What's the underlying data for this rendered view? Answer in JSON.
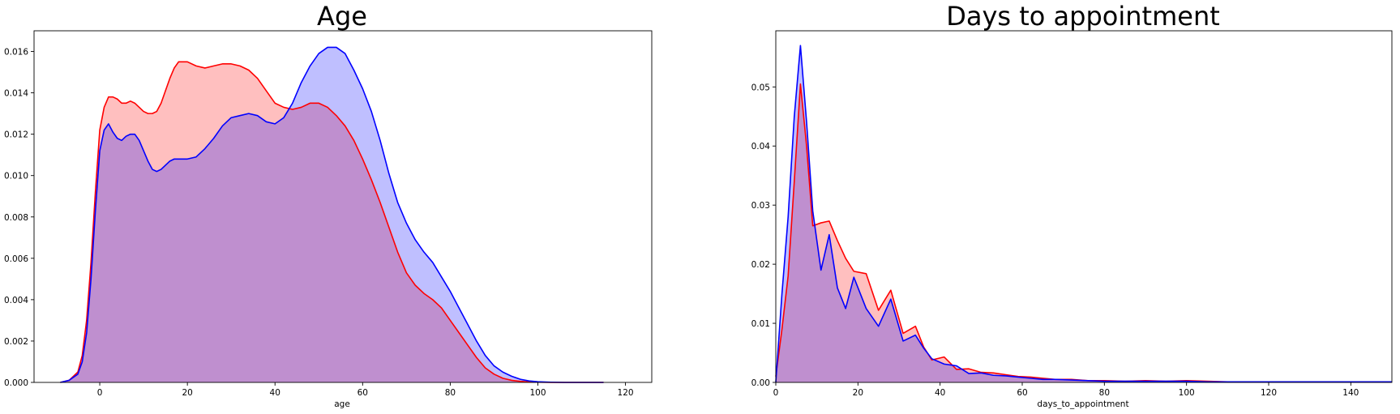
{
  "chart_data": [
    {
      "type": "area",
      "title": "Age",
      "xlabel": "age",
      "ylabel": "",
      "xlim": [
        -15,
        126
      ],
      "ylim": [
        0,
        0.017
      ],
      "xticks": [
        0,
        20,
        40,
        60,
        80,
        100,
        120
      ],
      "xtick_labels": [
        "0",
        "20",
        "40",
        "60",
        "80",
        "100",
        "120"
      ],
      "yticks": [
        0,
        0.002,
        0.004,
        0.006,
        0.008,
        0.01,
        0.012,
        0.014,
        0.016
      ],
      "ytick_labels": [
        "0.000",
        "0.002",
        "0.004",
        "0.006",
        "0.008",
        "0.010",
        "0.012",
        "0.014",
        "0.016"
      ],
      "grid": false,
      "series": [
        {
          "color": "#ff0000",
          "fill": "rgba(255,0,0,0.25)",
          "x": [
            -9,
            -7,
            -5,
            -4,
            -3,
            -2,
            -1,
            0,
            1,
            2,
            3,
            4,
            5,
            6,
            7,
            8,
            9,
            10,
            11,
            12,
            13,
            14,
            15,
            16,
            17,
            18,
            19,
            20,
            22,
            24,
            26,
            28,
            30,
            32,
            34,
            36,
            38,
            40,
            42,
            44,
            46,
            48,
            50,
            52,
            54,
            56,
            58,
            60,
            62,
            64,
            66,
            68,
            70,
            72,
            74,
            76,
            78,
            80,
            82,
            84,
            86,
            88,
            90,
            92,
            94,
            96,
            98,
            100,
            103,
            106,
            110,
            115
          ],
          "y": [
            0,
            0.0001,
            0.0005,
            0.0013,
            0.003,
            0.0058,
            0.0092,
            0.0122,
            0.0133,
            0.0138,
            0.0138,
            0.0137,
            0.0135,
            0.0135,
            0.0136,
            0.0135,
            0.0133,
            0.0131,
            0.013,
            0.013,
            0.0131,
            0.0135,
            0.0141,
            0.0147,
            0.0152,
            0.0155,
            0.0155,
            0.0155,
            0.0153,
            0.0152,
            0.0153,
            0.0154,
            0.0154,
            0.0153,
            0.0151,
            0.0147,
            0.0141,
            0.0135,
            0.0133,
            0.0132,
            0.0133,
            0.0135,
            0.0135,
            0.0133,
            0.0129,
            0.0124,
            0.0117,
            0.0108,
            0.0098,
            0.0087,
            0.0075,
            0.0063,
            0.0053,
            0.0047,
            0.0043,
            0.004,
            0.0036,
            0.003,
            0.0024,
            0.0018,
            0.0012,
            0.0007,
            0.0004,
            0.0002,
            0.0001,
            5e-05,
            2e-05,
            1e-05,
            0,
            0,
            0,
            0
          ]
        },
        {
          "color": "#0000ff",
          "fill": "rgba(0,0,255,0.25)",
          "x": [
            -9,
            -7,
            -5,
            -4,
            -3,
            -2,
            -1,
            0,
            1,
            2,
            3,
            4,
            5,
            6,
            7,
            8,
            9,
            10,
            11,
            12,
            13,
            14,
            15,
            16,
            17,
            18,
            19,
            20,
            22,
            24,
            26,
            28,
            30,
            32,
            34,
            36,
            38,
            40,
            42,
            44,
            46,
            48,
            50,
            52,
            54,
            56,
            58,
            60,
            62,
            64,
            66,
            68,
            70,
            72,
            74,
            76,
            78,
            80,
            82,
            84,
            86,
            88,
            90,
            92,
            94,
            96,
            98,
            100,
            103,
            106,
            110,
            115
          ],
          "y": [
            0,
            0.0001,
            0.0004,
            0.001,
            0.0024,
            0.005,
            0.0083,
            0.0112,
            0.0122,
            0.0125,
            0.0121,
            0.0118,
            0.0117,
            0.0119,
            0.012,
            0.012,
            0.0117,
            0.0112,
            0.0107,
            0.0103,
            0.0102,
            0.0103,
            0.0105,
            0.0107,
            0.0108,
            0.0108,
            0.0108,
            0.0108,
            0.0109,
            0.0113,
            0.0118,
            0.0124,
            0.0128,
            0.0129,
            0.013,
            0.0129,
            0.0126,
            0.0125,
            0.0128,
            0.0135,
            0.0145,
            0.0153,
            0.0159,
            0.0162,
            0.0162,
            0.0159,
            0.0151,
            0.0142,
            0.0131,
            0.0117,
            0.0101,
            0.0087,
            0.0077,
            0.0069,
            0.0063,
            0.0058,
            0.0051,
            0.0044,
            0.0036,
            0.0028,
            0.002,
            0.0013,
            0.0008,
            0.0005,
            0.0003,
            0.00015,
            7e-05,
            3e-05,
            1e-05,
            0,
            0,
            0
          ]
        }
      ]
    },
    {
      "type": "area",
      "title": "Days to appointment",
      "xlabel": "days_to_appointment",
      "ylabel": "",
      "xlim": [
        0,
        150
      ],
      "ylim": [
        0,
        0.0595
      ],
      "xticks": [
        0,
        20,
        40,
        60,
        80,
        100,
        120,
        140
      ],
      "xtick_labels": [
        "0",
        "20",
        "40",
        "60",
        "80",
        "100",
        "120",
        "140"
      ],
      "yticks": [
        0,
        0.01,
        0.02,
        0.03,
        0.04,
        0.05
      ],
      "ytick_labels": [
        "0.00",
        "0.01",
        "0.02",
        "0.03",
        "0.04",
        "0.05"
      ],
      "grid": false,
      "series": [
        {
          "color": "#ff0000",
          "fill": "rgba(255,0,0,0.25)",
          "x": [
            0,
            1.5,
            3,
            4.5,
            6,
            7.5,
            9,
            11,
            13,
            15,
            17,
            19,
            22,
            25,
            28,
            31,
            34,
            36,
            38,
            41,
            44,
            47,
            50,
            53,
            56,
            59,
            62,
            65,
            68,
            72,
            76,
            80,
            85,
            90,
            95,
            100,
            105,
            110,
            120,
            130,
            140,
            150
          ],
          "y": [
            0.001,
            0.009,
            0.018,
            0.034,
            0.0505,
            0.04,
            0.0265,
            0.027,
            0.0273,
            0.024,
            0.021,
            0.0188,
            0.0184,
            0.0122,
            0.0156,
            0.0083,
            0.0095,
            0.006,
            0.0038,
            0.0043,
            0.0022,
            0.0023,
            0.0017,
            0.0016,
            0.0013,
            0.001,
            0.0009,
            0.0007,
            0.0005,
            0.0005,
            0.0003,
            0.0003,
            0.0002,
            0.0003,
            0.0002,
            0.0003,
            0.0002,
            0.0001,
            0.0001,
            0.0001,
            0.0001,
            0.0001
          ]
        },
        {
          "color": "#0000ff",
          "fill": "rgba(0,0,255,0.25)",
          "x": [
            0,
            1.5,
            3,
            4.5,
            6,
            7.5,
            9,
            11,
            13,
            15,
            17,
            19,
            22,
            25,
            28,
            31,
            34,
            36,
            38,
            41,
            44,
            47,
            50,
            53,
            56,
            59,
            62,
            65,
            68,
            72,
            76,
            80,
            85,
            90,
            95,
            100,
            105,
            110,
            120,
            130,
            140,
            150
          ],
          "y": [
            0,
            0.015,
            0.028,
            0.045,
            0.057,
            0.044,
            0.029,
            0.019,
            0.025,
            0.016,
            0.0125,
            0.0178,
            0.0125,
            0.0095,
            0.0141,
            0.007,
            0.008,
            0.0058,
            0.004,
            0.0031,
            0.0028,
            0.0015,
            0.0016,
            0.0012,
            0.0011,
            0.0009,
            0.0007,
            0.0005,
            0.0005,
            0.0004,
            0.0003,
            0.0002,
            0.0002,
            0.0002,
            0.0002,
            0.0002,
            0.0001,
            0.0001,
            0.0001,
            0.0001,
            0.0001,
            0.0001
          ]
        }
      ]
    }
  ]
}
